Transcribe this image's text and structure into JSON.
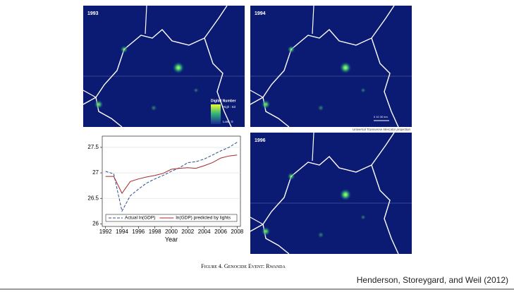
{
  "chart_data": {
    "type": "line",
    "x_label": "Year",
    "x": [
      1992,
      1993,
      1994,
      1995,
      1996,
      1997,
      1998,
      1999,
      2000,
      2001,
      2002,
      2003,
      2004,
      2005,
      2006,
      2007,
      2008
    ],
    "series": [
      {
        "name": "Actual ln(GDP)",
        "color": "#2b4f8f",
        "dashed": true,
        "values": [
          27.03,
          26.98,
          26.25,
          26.55,
          26.68,
          26.8,
          26.88,
          26.95,
          27.03,
          27.1,
          27.2,
          27.22,
          27.27,
          27.35,
          27.43,
          27.5,
          27.6
        ]
      },
      {
        "name": "ln(GDP) predicted by lights",
        "color": "#a3282a",
        "dashed": false,
        "values": [
          26.93,
          26.93,
          26.6,
          26.83,
          26.88,
          26.92,
          26.95,
          26.99,
          27.07,
          27.09,
          27.1,
          27.09,
          27.14,
          27.2,
          27.29,
          27.33,
          27.35
        ]
      }
    ],
    "xlim": [
      1991.6,
      2008.4
    ],
    "xticks": [
      1992,
      1994,
      1996,
      1998,
      2000,
      2002,
      2004,
      2006,
      2008
    ],
    "ylim": [
      25.95,
      27.72
    ],
    "yticks": [
      26,
      26.5,
      27,
      27.5
    ],
    "grid": true,
    "legend": "bottom"
  },
  "maps": [
    {
      "label": "1993"
    },
    {
      "label": "1994"
    },
    {
      "label": "1996"
    }
  ],
  "map_legend": {
    "title": "Digital Number",
    "high": "High : 63",
    "low": "Low : 0"
  },
  "scale_bar": {
    "label": "0  10    30 km",
    "projection": "Universal Transverse Mercator projection"
  },
  "caption": "Figure 4. Genocide Event: Rwanda",
  "citation": "Henderson, Storeygard, and Weil (2012)"
}
